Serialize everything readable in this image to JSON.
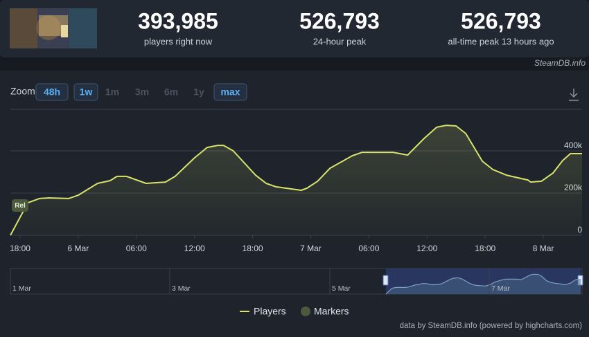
{
  "header": {
    "stats": [
      {
        "value": "393,985",
        "label": "players right now"
      },
      {
        "value": "526,793",
        "label": "24-hour peak"
      },
      {
        "value": "526,793",
        "label": "all-time peak 13 hours ago"
      }
    ],
    "credit": "SteamDB.info"
  },
  "zoom": {
    "label": "Zoom",
    "buttons": [
      "48h",
      "1w",
      "1m",
      "3m",
      "6m",
      "1y",
      "max"
    ]
  },
  "chart_data": {
    "type": "line",
    "x": [
      17,
      18.8,
      20,
      21,
      23,
      24,
      26,
      27.3,
      28,
      29,
      31,
      33,
      34,
      36,
      37.3,
      38.4,
      39,
      40,
      42.3,
      43.4,
      44.4,
      47,
      47.6,
      48.7,
      50,
      52.3,
      53.3,
      56.5,
      58,
      59.7,
      61,
      62,
      63,
      64,
      65.7,
      66.8,
      68.2,
      70.4,
      70.7,
      71.8,
      73,
      74,
      74.8,
      76
    ],
    "series": [
      {
        "name": "Players",
        "color": "#d7e36a",
        "values": [
          0,
          154000,
          174000,
          177000,
          174000,
          190000,
          246000,
          259000,
          279000,
          279000,
          246000,
          252000,
          279000,
          367000,
          416000,
          426000,
          426000,
          400000,
          285000,
          246000,
          230000,
          213000,
          223000,
          256000,
          318000,
          377000,
          393000,
          393000,
          380000,
          459000,
          512000,
          521000,
          518000,
          482000,
          351000,
          311000,
          285000,
          262000,
          252000,
          256000,
          295000,
          354000,
          387000,
          387000
        ]
      }
    ],
    "xlim": [
      17,
      76
    ],
    "ylim": [
      0,
      600000
    ],
    "xticks": [
      {
        "value": 18,
        "label": "18:00"
      },
      {
        "value": 24,
        "label": "6 Mar"
      },
      {
        "value": 30,
        "label": "06:00"
      },
      {
        "value": 36,
        "label": "12:00"
      },
      {
        "value": 42,
        "label": "18:00"
      },
      {
        "value": 48,
        "label": "7 Mar"
      },
      {
        "value": 54,
        "label": "06:00"
      },
      {
        "value": 60,
        "label": "12:00"
      },
      {
        "value": 66,
        "label": "18:00"
      },
      {
        "value": 72,
        "label": "8 Mar"
      }
    ],
    "yticks": [
      0,
      {
        "value": 200000,
        "label": "200k"
      },
      {
        "value": 400000,
        "label": "400k"
      }
    ],
    "grid": true,
    "markers": {
      "name": "Markers",
      "color": "#4b5a3c",
      "points": [
        {
          "x": 18,
          "label": "Rel"
        }
      ]
    }
  },
  "navigator": {
    "labels": [
      "1 Mar",
      "3 Mar",
      "5 Mar",
      "7 Mar"
    ]
  },
  "footer": "data by SteamDB.info (powered by highcharts.com)"
}
